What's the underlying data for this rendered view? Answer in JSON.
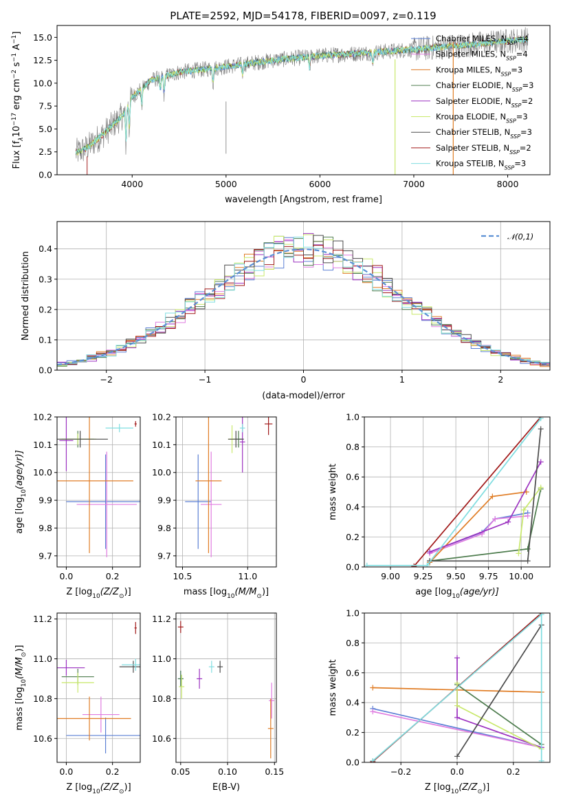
{
  "title": "PLATE=2592, MJD=54178, FIBERID=0097, z=0.119",
  "model_names": [
    "Chabrier MILES",
    "Salpeter MILES",
    "Kroupa MILES",
    "Chabrier ELODIE",
    "Salpeter ELODIE",
    "Kroupa ELODIE",
    "Chabrier STELIB",
    "Salpeter STELIB",
    "Kroupa STELIB"
  ],
  "model_colors": [
    "#5b7fd4",
    "#e07be0",
    "#e07c24",
    "#4d7c4d",
    "#9b30c0",
    "#c8e86a",
    "#4a4a4a",
    "#a01818",
    "#7fdde0"
  ],
  "chart_data": [
    {
      "type": "line",
      "xlabel": "wavelength [Angstrom, rest frame]",
      "ylabel": "Flux [f",
      "ylabel_parts": {
        "a": "Flux [f",
        "b": "λ",
        "c": "10",
        "d": "−17",
        "e": " erg cm",
        "f": "−2",
        "g": " s",
        "h": "−1",
        "i": " A",
        "j": "−1",
        "k": "]"
      },
      "xlim": [
        3200,
        8450
      ],
      "ylim": [
        0,
        16.3
      ],
      "xticks": [
        4000,
        5000,
        6000,
        7000,
        8000
      ],
      "yticks": [
        0.0,
        2.5,
        5.0,
        7.5,
        10.0,
        12.5,
        15.0
      ],
      "legend": [
        {
          "name": "Chabrier MILES",
          "nssp": "4"
        },
        {
          "name": "Salpeter MILES",
          "nssp": "4"
        },
        {
          "name": "Kroupa MILES",
          "nssp": "3"
        },
        {
          "name": "Chabrier ELODIE",
          "nssp": "3"
        },
        {
          "name": "Salpeter ELODIE",
          "nssp": "2"
        },
        {
          "name": "Kroupa ELODIE",
          "nssp": "3"
        },
        {
          "name": "Chabrier STELIB",
          "nssp": "3"
        },
        {
          "name": "Salpeter STELIB",
          "nssp": "2"
        },
        {
          "name": "Kroupa STELIB",
          "nssp": "3"
        }
      ],
      "nssp_sub": "SSP",
      "continuum": {
        "x": [
          3400,
          3500,
          3700,
          3900,
          4000,
          4200,
          4500,
          5000,
          5500,
          6000,
          6500,
          7000,
          7500,
          8000,
          8200
        ],
        "y": [
          2.4,
          2.8,
          4.5,
          6.5,
          8.5,
          10.3,
          11.2,
          11.8,
          12.5,
          13.0,
          13.3,
          13.7,
          14.1,
          14.6,
          14.8
        ]
      }
    },
    {
      "type": "bar",
      "xlabel": "(data-model)/error",
      "ylabel": "Normed distribution",
      "xlim": [
        -2.5,
        2.5
      ],
      "ylim": [
        0,
        0.49
      ],
      "xticks": [
        -2,
        -1,
        0,
        1,
        2
      ],
      "yticks": [
        0.0,
        0.1,
        0.2,
        0.3,
        0.4
      ],
      "legend": "𝒩(0,1)",
      "legend_loc": "upper right",
      "bin_width": 0.1
    },
    {
      "type": "scatter",
      "xlabel": "Z [log",
      "xlabel_parts": {
        "a": "Z [log",
        "b": "10",
        "c": "(Z/Z",
        "d": "⊙",
        "e": ")]"
      },
      "ylabel": "age [log10(age/yr)]",
      "ylabel_parts": {
        "a": "age  [log",
        "b": "10",
        "c": "(age/yr)]"
      },
      "xlim": [
        -0.04,
        0.32
      ],
      "ylim": [
        9.66,
        10.2
      ],
      "xticks": [
        0.0,
        0.2
      ],
      "yticks": [
        9.7,
        9.8,
        9.9,
        10.0,
        10.1,
        10.2
      ],
      "points": [
        {
          "model": 0,
          "x": 0.17,
          "y": 9.895,
          "xerr": 0.17,
          "yerr": 0.17
        },
        {
          "model": 1,
          "x": 0.175,
          "y": 9.885,
          "xerr": 0.13,
          "yerr": 0.19
        },
        {
          "model": 2,
          "x": 0.1,
          "y": 9.97,
          "xerr": 0.19,
          "yerr": 0.26
        },
        {
          "model": 3,
          "x": 0.05,
          "y": 10.12,
          "xerr": 0.07,
          "yerr": 0.03
        },
        {
          "model": 4,
          "x": 0.0,
          "y": 10.115,
          "xerr": 0.03,
          "yerr": 0.11
        },
        {
          "model": 5,
          "x": 0.05,
          "y": 10.12,
          "xerr": 0.08,
          "yerr": 0.02
        },
        {
          "model": 6,
          "x": 0.06,
          "y": 10.12,
          "xerr": 0.12,
          "yerr": 0.03
        },
        {
          "model": 7,
          "x": 0.3,
          "y": 10.175,
          "xerr": 0.005,
          "yerr": 0.01
        },
        {
          "model": 8,
          "x": 0.23,
          "y": 10.16,
          "xerr": 0.06,
          "yerr": 0.015
        }
      ]
    },
    {
      "type": "scatter",
      "xlabel": "mass [log10(M/M⊙)]",
      "xlabel_parts": {
        "a": "mass [log",
        "b": "10",
        "c": "(M/M",
        "d": "⊙",
        "e": ")]"
      },
      "xlim": [
        10.45,
        11.22
      ],
      "ylim": [
        9.66,
        10.2
      ],
      "xticks": [
        10.5,
        11.0
      ],
      "yticks": [
        9.7,
        9.8,
        9.9,
        10.0,
        10.1,
        10.2
      ],
      "points": [
        {
          "model": 0,
          "x": 10.62,
          "y": 9.895,
          "xerr": 0.1,
          "yerr": 0.17
        },
        {
          "model": 1,
          "x": 10.72,
          "y": 9.885,
          "xerr": 0.08,
          "yerr": 0.19
        },
        {
          "model": 2,
          "x": 10.7,
          "y": 9.97,
          "xerr": 0.1,
          "yerr": 0.26
        },
        {
          "model": 3,
          "x": 10.93,
          "y": 10.12,
          "xerr": 0.04,
          "yerr": 0.03
        },
        {
          "model": 4,
          "x": 10.96,
          "y": 10.11,
          "xerr": 0.02,
          "yerr": 0.11
        },
        {
          "model": 5,
          "x": 10.88,
          "y": 10.12,
          "xerr": 0.03,
          "yerr": 0.05
        },
        {
          "model": 6,
          "x": 10.91,
          "y": 10.12,
          "xerr": 0.06,
          "yerr": 0.03
        },
        {
          "model": 7,
          "x": 11.16,
          "y": 10.175,
          "xerr": 0.03,
          "yerr": 0.04
        },
        {
          "model": 8,
          "x": 10.96,
          "y": 10.16,
          "xerr": 0.02,
          "yerr": 0.015
        }
      ]
    },
    {
      "type": "line",
      "xlabel": "age [log10(age/yr)]",
      "xlabel_parts": {
        "a": "age  [log",
        "b": "10",
        "c": "(age/yr)]"
      },
      "ylabel": "mass weight",
      "xlim": [
        8.8,
        10.22
      ],
      "ylim": [
        0,
        1.0
      ],
      "xticks": [
        9.0,
        9.25,
        9.5,
        9.75,
        10.0
      ],
      "xtick_labels": [
        "9.00",
        "9.25",
        "9.50",
        "9.75",
        "10.00"
      ],
      "yticks": [
        0.0,
        0.2,
        0.4,
        0.6,
        0.8,
        1.0
      ],
      "series": [
        {
          "model": 0,
          "x": [
            9.3,
            9.7,
            9.8,
            10.05
          ],
          "y": [
            0.1,
            0.23,
            0.32,
            0.36
          ]
        },
        {
          "model": 1,
          "x": [
            9.3,
            9.7,
            9.8,
            10.05
          ],
          "y": [
            0.09,
            0.22,
            0.32,
            0.34
          ]
        },
        {
          "model": 2,
          "x": [
            9.3,
            9.78,
            10.04
          ],
          "y": [
            0.03,
            0.47,
            0.5
          ]
        },
        {
          "model": 3,
          "x": [
            9.3,
            10.05,
            10.15
          ],
          "y": [
            0.04,
            0.12,
            0.52
          ]
        },
        {
          "model": 4,
          "x": [
            9.3,
            9.9,
            10.15
          ],
          "y": [
            0.1,
            0.3,
            0.7
          ]
        },
        {
          "model": 5,
          "x": [
            9.98,
            10.02,
            10.15
          ],
          "y": [
            0.09,
            0.38,
            0.53
          ]
        },
        {
          "model": 6,
          "x": [
            9.3,
            10.05,
            10.15
          ],
          "y": [
            0.04,
            0.04,
            0.92
          ]
        },
        {
          "model": 7,
          "x": [
            9.18,
            10.15
          ],
          "y": [
            0.005,
            1.0
          ]
        },
        {
          "model": 8,
          "x": [
            8.82,
            9.28,
            10.15
          ],
          "y": [
            0.01,
            0.01,
            0.99
          ]
        }
      ]
    },
    {
      "type": "scatter",
      "xlabel": "Z [log10(Z/Z⊙)]",
      "xlabel_parts": {
        "a": "Z [log",
        "b": "10",
        "c": "(Z/Z",
        "d": "⊙",
        "e": ")]"
      },
      "ylabel": "mass [log10(M/M⊙)]",
      "ylabel_parts": {
        "a": "mass [log",
        "b": "10",
        "c": "(M/M",
        "d": "⊙",
        "e": ")]"
      },
      "xlim": [
        -0.04,
        0.32
      ],
      "ylim": [
        10.48,
        11.23
      ],
      "xticks": [
        0.0,
        0.2
      ],
      "yticks": [
        10.6,
        10.8,
        11.0,
        11.2
      ],
      "points": [
        {
          "model": 0,
          "x": 0.17,
          "y": 10.615,
          "xerr": 0.17,
          "yerr": 0.09
        },
        {
          "model": 1,
          "x": 0.15,
          "y": 10.72,
          "xerr": 0.08,
          "yerr": 0.09
        },
        {
          "model": 2,
          "x": 0.1,
          "y": 10.7,
          "xerr": 0.18,
          "yerr": 0.11
        },
        {
          "model": 3,
          "x": 0.05,
          "y": 10.91,
          "xerr": 0.07,
          "yerr": 0.04
        },
        {
          "model": 4,
          "x": 0.0,
          "y": 10.955,
          "xerr": 0.08,
          "yerr": 0.04
        },
        {
          "model": 5,
          "x": 0.05,
          "y": 10.88,
          "xerr": 0.07,
          "yerr": 0.05
        },
        {
          "model": 6,
          "x": 0.29,
          "y": 10.96,
          "xerr": 0.06,
          "yerr": 0.03
        },
        {
          "model": 7,
          "x": 0.3,
          "y": 11.155,
          "xerr": 0.005,
          "yerr": 0.03
        },
        {
          "model": 8,
          "x": 0.3,
          "y": 10.97,
          "xerr": 0.06,
          "yerr": 0.03
        }
      ]
    },
    {
      "type": "scatter",
      "xlabel": "E(B-V)",
      "xlim": [
        0.045,
        0.152
      ],
      "ylim": [
        10.48,
        11.23
      ],
      "xticks": [
        0.05,
        0.1,
        0.15
      ],
      "xtick_labels": [
        "0.05",
        "0.10",
        "0.15"
      ],
      "yticks": [
        10.6,
        10.8,
        11.0,
        11.2
      ],
      "points": [
        {
          "model": 0,
          "x": 0.05,
          "y": 10.9,
          "yerr": 0.04
        },
        {
          "model": 1,
          "x": 0.147,
          "y": 10.79,
          "yerr": 0.09
        },
        {
          "model": 2,
          "x": 0.146,
          "y": 10.65,
          "yerr": 0.15
        },
        {
          "model": 3,
          "x": 0.05,
          "y": 10.9,
          "yerr": 0.04
        },
        {
          "model": 4,
          "x": 0.07,
          "y": 10.9,
          "yerr": 0.05
        },
        {
          "model": 5,
          "x": 0.051,
          "y": 10.86,
          "yerr": 0.06
        },
        {
          "model": 6,
          "x": 0.092,
          "y": 10.96,
          "yerr": 0.03
        },
        {
          "model": 7,
          "x": 0.05,
          "y": 11.16,
          "yerr": 0.03
        },
        {
          "model": 8,
          "x": 0.083,
          "y": 10.96,
          "yerr": 0.03
        }
      ]
    },
    {
      "type": "line",
      "xlabel": "Z [log10(Z/Z⊙)]",
      "xlabel_parts": {
        "a": "Z [log",
        "b": "10",
        "c": "(Z/Z",
        "d": "⊙",
        "e": ")]"
      },
      "ylabel": "mass weight",
      "xlim": [
        -0.33,
        0.33
      ],
      "ylim": [
        0,
        1.0
      ],
      "xticks": [
        -0.2,
        0.0,
        0.2
      ],
      "xtick_labels": [
        "−0.2",
        "0.0",
        "0.2"
      ],
      "yticks": [
        0.0,
        0.2,
        0.4,
        0.6,
        0.8,
        1.0
      ],
      "series": [
        {
          "model": 0,
          "x": [
            -0.3,
            0.3
          ],
          "y": [
            0.36,
            0.1
          ]
        },
        {
          "model": 1,
          "x": [
            -0.3,
            0.3
          ],
          "y": [
            0.34,
            0.1
          ]
        },
        {
          "model": 2,
          "x": [
            -0.3,
            0.3
          ],
          "y": [
            0.5,
            0.47
          ]
        },
        {
          "model": 3,
          "x": [
            0.0,
            0.3
          ],
          "y": [
            0.52,
            0.12
          ]
        },
        {
          "model": 4,
          "x": [
            0.0,
            0.0,
            0.3
          ],
          "y": [
            0.7,
            0.3,
            0.1
          ]
        },
        {
          "model": 5,
          "x": [
            0.0,
            0.0,
            0.3
          ],
          "y": [
            0.53,
            0.38,
            0.09
          ]
        },
        {
          "model": 6,
          "x": [
            0.0,
            0.3
          ],
          "y": [
            0.04,
            0.92
          ]
        },
        {
          "model": 7,
          "x": [
            -0.3,
            0.3
          ],
          "y": [
            0.005,
            1.0
          ]
        },
        {
          "model": 8,
          "x": [
            -0.3,
            0.3,
            0.3
          ],
          "y": [
            0.01,
            0.99,
            0.01
          ]
        }
      ]
    }
  ]
}
